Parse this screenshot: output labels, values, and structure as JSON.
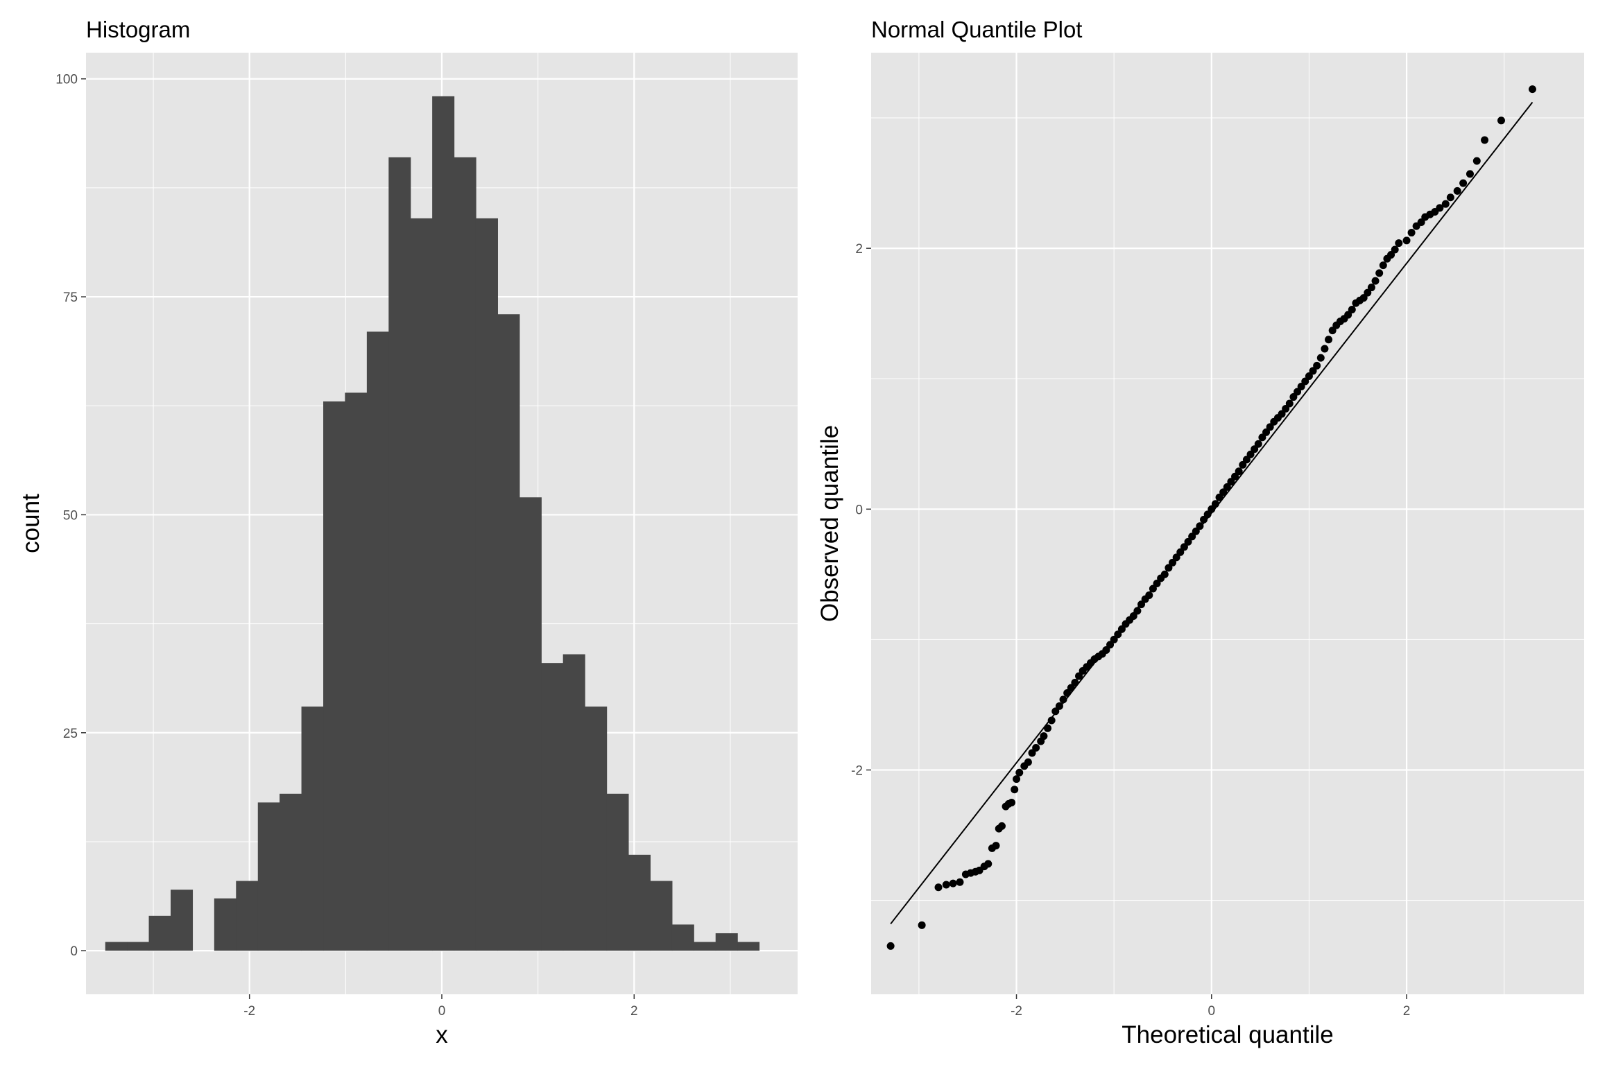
{
  "chart_data": [
    {
      "type": "bar",
      "title": "Histogram",
      "xlabel": "x",
      "ylabel": "count",
      "xlim": [
        -3.7,
        3.7
      ],
      "ylim": [
        -5,
        103
      ],
      "x_ticks": [
        -2,
        0,
        2
      ],
      "y_ticks": [
        0,
        25,
        50,
        75,
        100
      ],
      "bin_width": 0.2267,
      "bins": [
        {
          "x0": -3.5,
          "count": 1
        },
        {
          "x0": -3.273,
          "count": 1
        },
        {
          "x0": -3.047,
          "count": 4
        },
        {
          "x0": -2.82,
          "count": 7
        },
        {
          "x0": -2.593,
          "count": 0
        },
        {
          "x0": -2.367,
          "count": 6
        },
        {
          "x0": -2.14,
          "count": 8
        },
        {
          "x0": -1.913,
          "count": 17
        },
        {
          "x0": -1.687,
          "count": 18
        },
        {
          "x0": -1.46,
          "count": 28
        },
        {
          "x0": -1.233,
          "count": 63
        },
        {
          "x0": -1.007,
          "count": 64
        },
        {
          "x0": -0.78,
          "count": 71
        },
        {
          "x0": -0.553,
          "count": 91
        },
        {
          "x0": -0.327,
          "count": 84
        },
        {
          "x0": -0.1,
          "count": 98
        },
        {
          "x0": 0.127,
          "count": 91
        },
        {
          "x0": 0.353,
          "count": 84
        },
        {
          "x0": 0.58,
          "count": 73
        },
        {
          "x0": 0.807,
          "count": 52
        },
        {
          "x0": 1.033,
          "count": 33
        },
        {
          "x0": 1.26,
          "count": 34
        },
        {
          "x0": 1.487,
          "count": 28
        },
        {
          "x0": 1.713,
          "count": 18
        },
        {
          "x0": 1.94,
          "count": 11
        },
        {
          "x0": 2.167,
          "count": 8
        },
        {
          "x0": 2.393,
          "count": 3
        },
        {
          "x0": 2.62,
          "count": 1
        },
        {
          "x0": 2.847,
          "count": 2
        },
        {
          "x0": 3.073,
          "count": 1
        }
      ],
      "colors": {
        "bar": "#474747",
        "panel": "#e5e5e5",
        "grid": "#ffffff"
      }
    },
    {
      "type": "scatter",
      "title": "Normal Quantile Plot",
      "xlabel": "Theoretical quantile",
      "ylabel": "Observed quantile",
      "xlim": [
        -3.49,
        3.82
      ],
      "ylim": [
        -3.72,
        3.5
      ],
      "x_ticks": [
        -2,
        0,
        2
      ],
      "y_ticks": [
        -2,
        0,
        2
      ],
      "reference_line": {
        "x": [
          -3.29,
          3.29
        ],
        "y": [
          -3.18,
          3.12
        ]
      },
      "points": [
        [
          -3.29,
          -3.35
        ],
        [
          -2.97,
          -3.19
        ],
        [
          -2.8,
          -2.9
        ],
        [
          -2.72,
          -2.88
        ],
        [
          -2.65,
          -2.87
        ],
        [
          -2.58,
          -2.86
        ],
        [
          -2.52,
          -2.8
        ],
        [
          -2.47,
          -2.79
        ],
        [
          -2.42,
          -2.78
        ],
        [
          -2.38,
          -2.77
        ],
        [
          -2.33,
          -2.74
        ],
        [
          -2.29,
          -2.72
        ],
        [
          -2.25,
          -2.6
        ],
        [
          -2.21,
          -2.58
        ],
        [
          -2.18,
          -2.45
        ],
        [
          -2.15,
          -2.43
        ],
        [
          -2.11,
          -2.28
        ],
        [
          -2.08,
          -2.26
        ],
        [
          -2.05,
          -2.25
        ],
        [
          -2.02,
          -2.15
        ],
        [
          -2.0,
          -2.07
        ],
        [
          -1.97,
          -2.02
        ],
        [
          -1.92,
          -1.97
        ],
        [
          -1.88,
          -1.94
        ],
        [
          -1.84,
          -1.87
        ],
        [
          -1.8,
          -1.83
        ],
        [
          -1.75,
          -1.78
        ],
        [
          -1.72,
          -1.74
        ],
        [
          -1.68,
          -1.68
        ],
        [
          -1.64,
          -1.62
        ],
        [
          -1.6,
          -1.55
        ],
        [
          -1.56,
          -1.51
        ],
        [
          -1.52,
          -1.46
        ],
        [
          -1.48,
          -1.41
        ],
        [
          -1.44,
          -1.37
        ],
        [
          -1.4,
          -1.33
        ],
        [
          -1.36,
          -1.28
        ],
        [
          -1.32,
          -1.24
        ],
        [
          -1.28,
          -1.21
        ],
        [
          -1.24,
          -1.18
        ],
        [
          -1.2,
          -1.15
        ],
        [
          -1.16,
          -1.13
        ],
        [
          -1.12,
          -1.11
        ],
        [
          -1.08,
          -1.08
        ],
        [
          -1.04,
          -1.04
        ],
        [
          -1.0,
          -1.0
        ],
        [
          -0.96,
          -0.96
        ],
        [
          -0.92,
          -0.92
        ],
        [
          -0.88,
          -0.88
        ],
        [
          -0.84,
          -0.85
        ],
        [
          -0.8,
          -0.82
        ],
        [
          -0.76,
          -0.78
        ],
        [
          -0.72,
          -0.73
        ],
        [
          -0.68,
          -0.69
        ],
        [
          -0.64,
          -0.66
        ],
        [
          -0.6,
          -0.61
        ],
        [
          -0.56,
          -0.57
        ],
        [
          -0.52,
          -0.53
        ],
        [
          -0.48,
          -0.5
        ],
        [
          -0.44,
          -0.45
        ],
        [
          -0.4,
          -0.41
        ],
        [
          -0.36,
          -0.37
        ],
        [
          -0.32,
          -0.33
        ],
        [
          -0.28,
          -0.29
        ],
        [
          -0.24,
          -0.25
        ],
        [
          -0.2,
          -0.21
        ],
        [
          -0.16,
          -0.17
        ],
        [
          -0.12,
          -0.13
        ],
        [
          -0.08,
          -0.08
        ],
        [
          -0.04,
          -0.04
        ],
        [
          0.0,
          0.0
        ],
        [
          0.04,
          0.04
        ],
        [
          0.08,
          0.09
        ],
        [
          0.12,
          0.13
        ],
        [
          0.16,
          0.17
        ],
        [
          0.2,
          0.21
        ],
        [
          0.24,
          0.25
        ],
        [
          0.28,
          0.29
        ],
        [
          0.32,
          0.34
        ],
        [
          0.36,
          0.38
        ],
        [
          0.4,
          0.42
        ],
        [
          0.44,
          0.46
        ],
        [
          0.48,
          0.5
        ],
        [
          0.52,
          0.55
        ],
        [
          0.56,
          0.59
        ],
        [
          0.6,
          0.63
        ],
        [
          0.64,
          0.67
        ],
        [
          0.68,
          0.7
        ],
        [
          0.72,
          0.73
        ],
        [
          0.76,
          0.77
        ],
        [
          0.8,
          0.81
        ],
        [
          0.84,
          0.86
        ],
        [
          0.88,
          0.9
        ],
        [
          0.92,
          0.94
        ],
        [
          0.96,
          0.98
        ],
        [
          1.0,
          1.02
        ],
        [
          1.04,
          1.06
        ],
        [
          1.08,
          1.1
        ],
        [
          1.12,
          1.16
        ],
        [
          1.16,
          1.23
        ],
        [
          1.2,
          1.3
        ],
        [
          1.24,
          1.37
        ],
        [
          1.28,
          1.41
        ],
        [
          1.32,
          1.44
        ],
        [
          1.36,
          1.46
        ],
        [
          1.4,
          1.49
        ],
        [
          1.44,
          1.53
        ],
        [
          1.48,
          1.58
        ],
        [
          1.52,
          1.6
        ],
        [
          1.56,
          1.62
        ],
        [
          1.6,
          1.66
        ],
        [
          1.64,
          1.7
        ],
        [
          1.68,
          1.75
        ],
        [
          1.72,
          1.81
        ],
        [
          1.76,
          1.87
        ],
        [
          1.8,
          1.92
        ],
        [
          1.84,
          1.95
        ],
        [
          1.88,
          1.99
        ],
        [
          1.92,
          2.04
        ],
        [
          2.0,
          2.06
        ],
        [
          2.05,
          2.12
        ],
        [
          2.1,
          2.17
        ],
        [
          2.15,
          2.2
        ],
        [
          2.19,
          2.24
        ],
        [
          2.24,
          2.26
        ],
        [
          2.29,
          2.28
        ],
        [
          2.34,
          2.31
        ],
        [
          2.4,
          2.34
        ],
        [
          2.45,
          2.39
        ],
        [
          2.52,
          2.44
        ],
        [
          2.58,
          2.5
        ],
        [
          2.65,
          2.57
        ],
        [
          2.72,
          2.67
        ],
        [
          2.8,
          2.83
        ],
        [
          2.97,
          2.98
        ],
        [
          3.29,
          3.22
        ]
      ],
      "colors": {
        "point": "#000000",
        "line": "#000000",
        "panel": "#e5e5e5",
        "grid": "#ffffff"
      }
    }
  ]
}
